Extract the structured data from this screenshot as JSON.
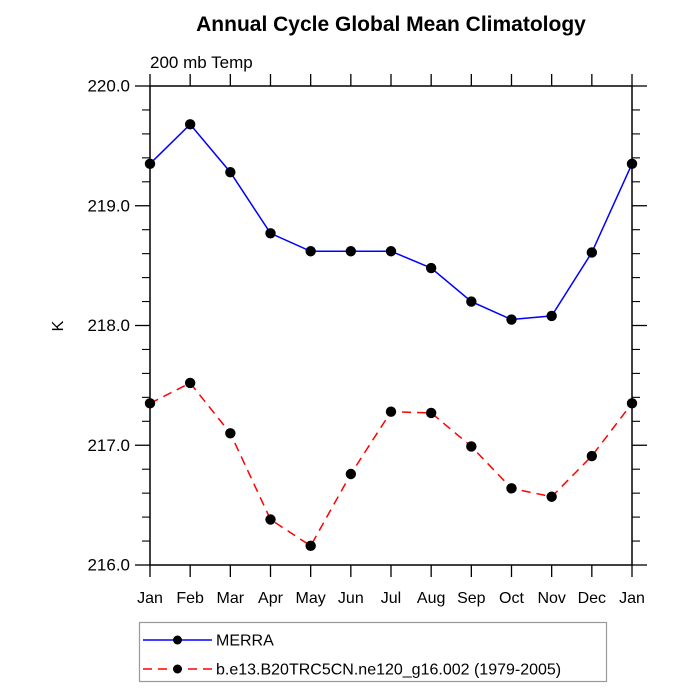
{
  "title": "Annual Cycle Global Mean Climatology",
  "subtitle": "200 mb Temp",
  "y_axis_label": "K",
  "legend": {
    "border_color": "#999999",
    "entries": [
      {
        "label": "MERRA",
        "color": "#0000ff",
        "line_style": "solid",
        "marker": "filled-circle",
        "marker_color": "#000000"
      },
      {
        "label": "b.e13.B20TRC5CN.ne120_g16.002 (1979-2005)",
        "color": "#ff0000",
        "line_style": "dashed",
        "marker": "filled-circle",
        "marker_color": "#000000"
      }
    ]
  },
  "chart_data": {
    "type": "line",
    "title": "Annual Cycle Global Mean Climatology",
    "subtitle": "200 mb Temp",
    "ylabel": "K",
    "x_categories": [
      "Jan",
      "Feb",
      "Mar",
      "Apr",
      "May",
      "Jun",
      "Jul",
      "Aug",
      "Sep",
      "Oct",
      "Nov",
      "Dec",
      "Jan"
    ],
    "series": [
      {
        "name": "MERRA",
        "color": "#0000ff",
        "line_style": "solid",
        "marker": "filled-circle",
        "marker_color": "#000000",
        "values": [
          219.35,
          219.68,
          219.28,
          218.77,
          218.62,
          218.62,
          218.62,
          218.48,
          218.2,
          218.05,
          218.08,
          218.61,
          219.35
        ]
      },
      {
        "name": "b.e13.B20TRC5CN.ne120_g16.002 (1979-2005)",
        "color": "#ff0000",
        "line_style": "dashed",
        "marker": "filled-circle",
        "marker_color": "#000000",
        "values": [
          217.35,
          217.52,
          217.1,
          216.38,
          216.16,
          216.76,
          217.28,
          217.27,
          216.99,
          216.64,
          216.57,
          216.91,
          217.35
        ]
      }
    ],
    "ylim": [
      216.0,
      220.0
    ],
    "y_major_ticks": [
      216.0,
      217.0,
      218.0,
      219.0,
      220.0
    ],
    "y_major_tick_labels": [
      "216.0",
      "217.0",
      "218.0",
      "219.0",
      "220.0"
    ],
    "y_minor_tick_interval": 0.2,
    "grid": false,
    "frame_color": "#000000",
    "background_color": "#ffffff",
    "legend_position": "bottom-left"
  }
}
